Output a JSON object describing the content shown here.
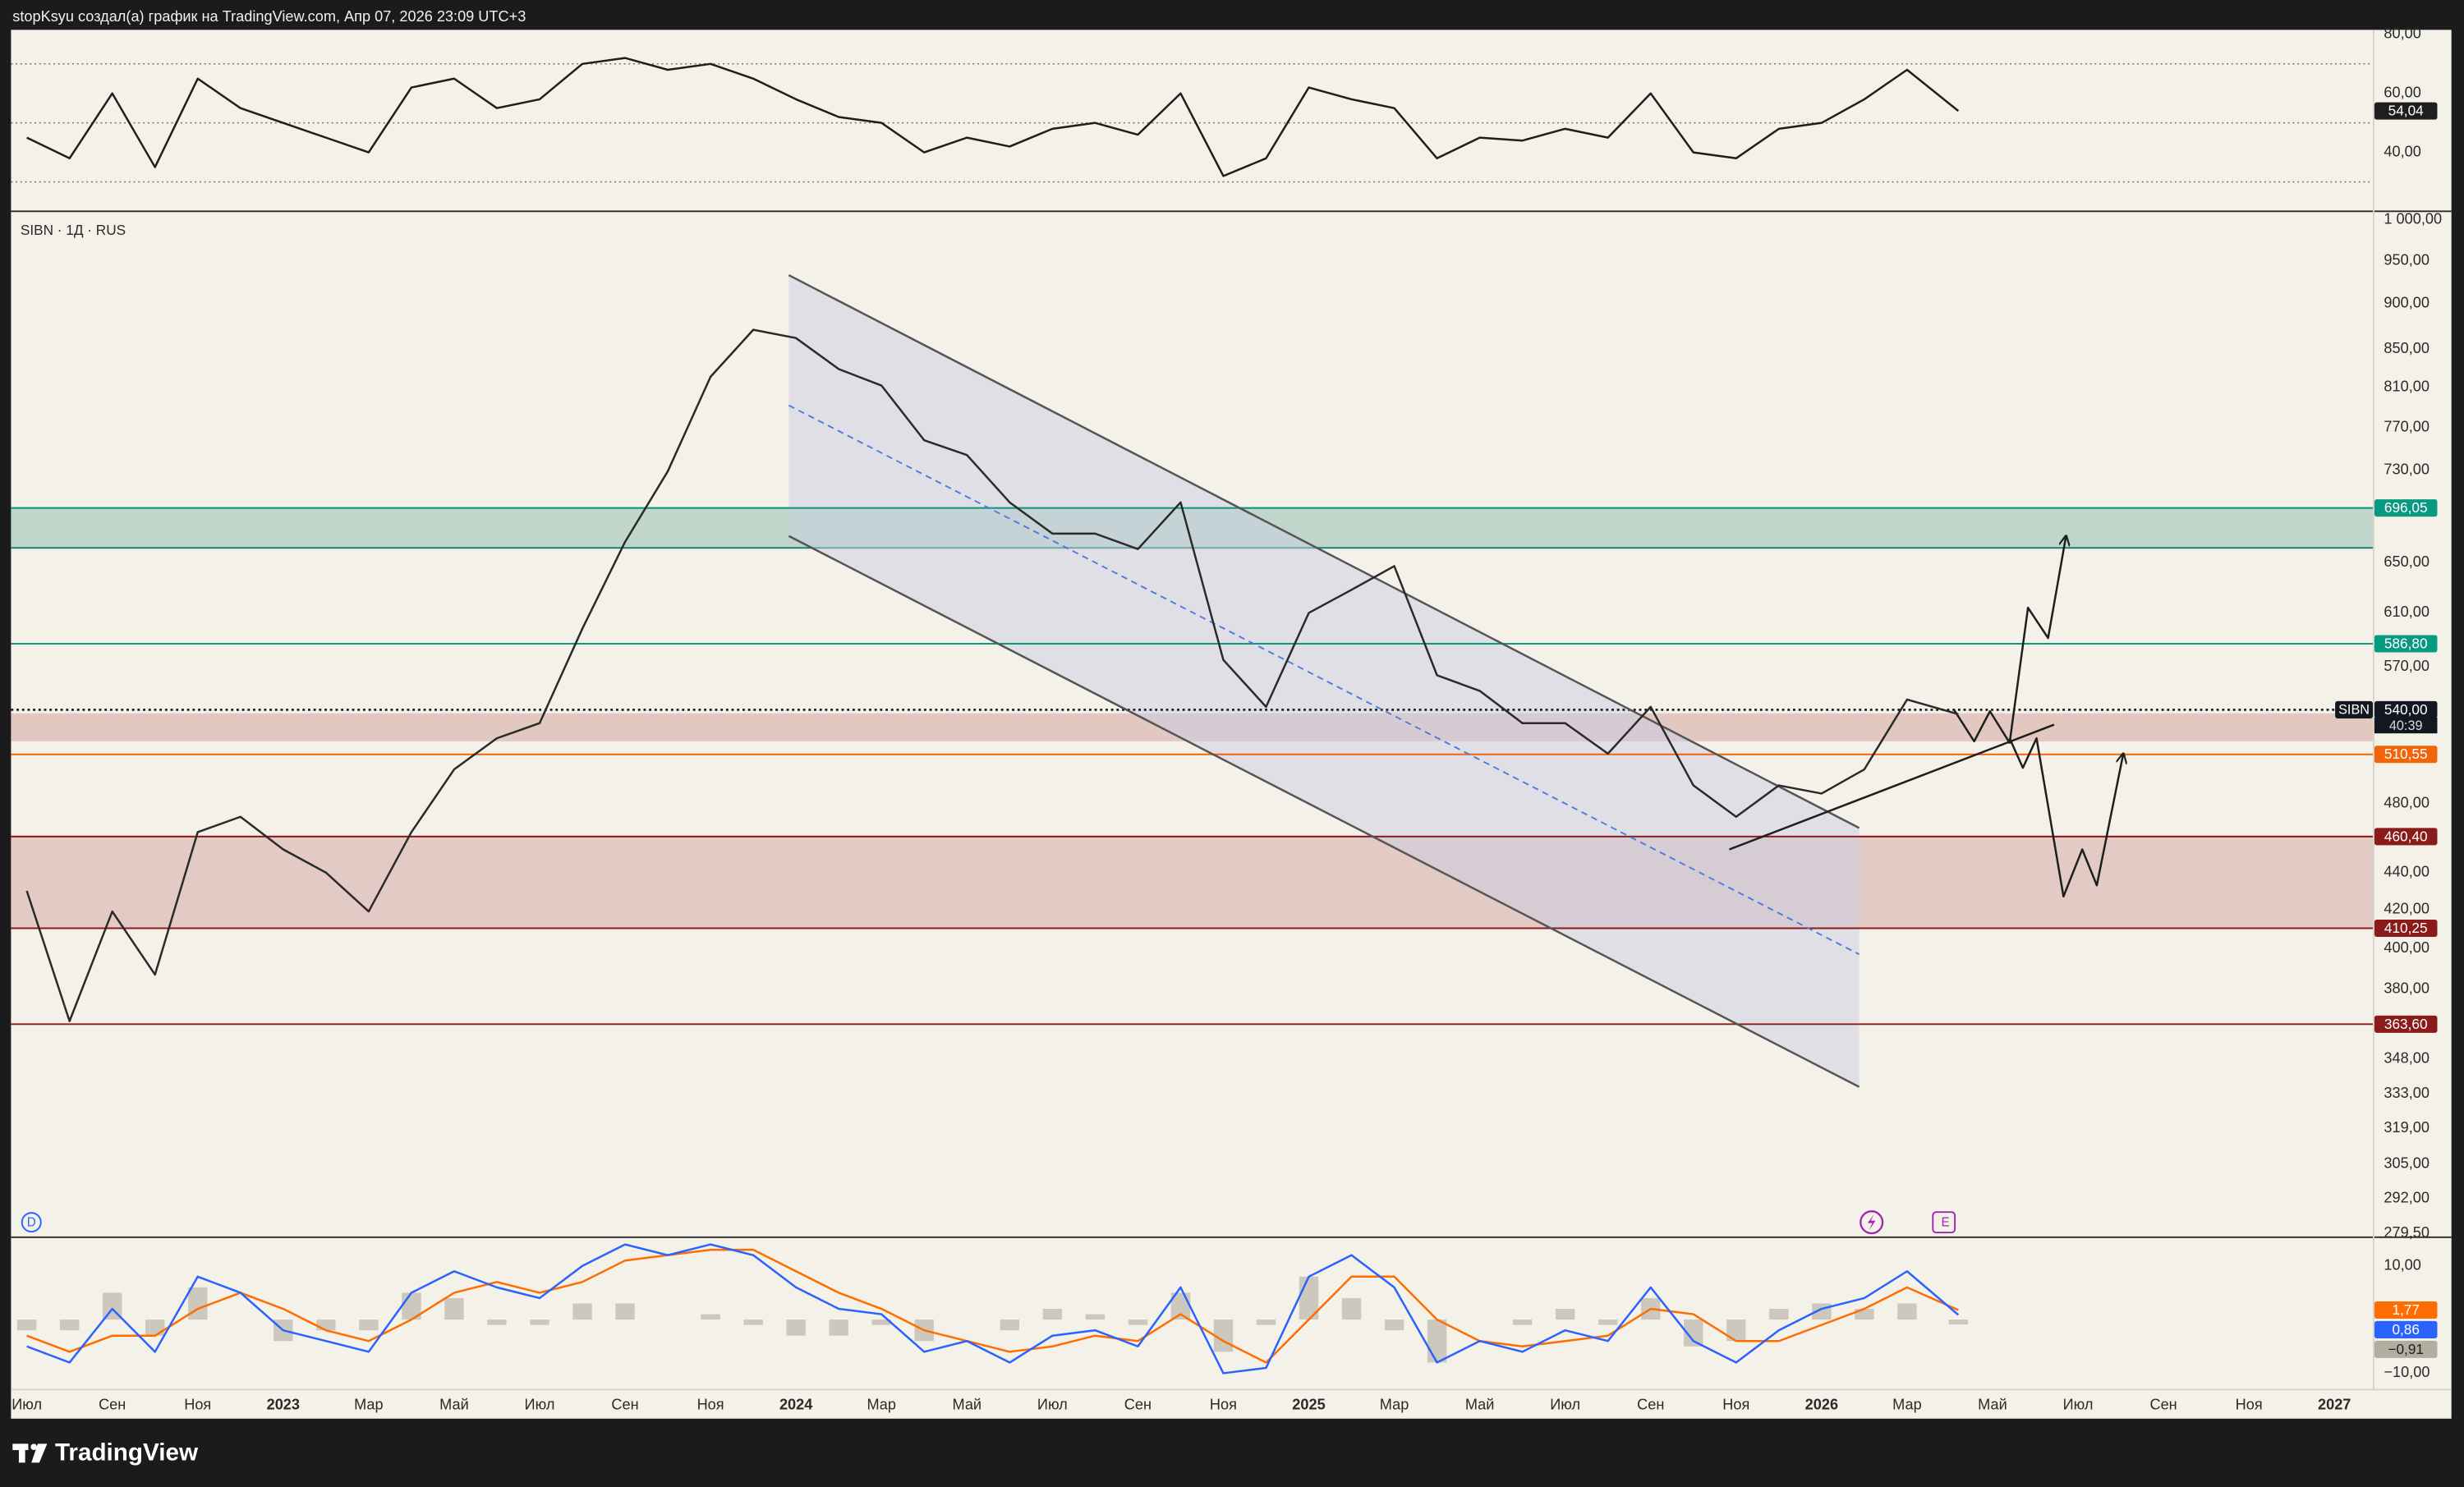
{
  "header": {
    "text": "stopKsyu создал(а) график на TradingView.com, Апр 07, 2026 23:09 UTC+3"
  },
  "footer": {
    "brand": "TradingView"
  },
  "markers": {
    "dividend": "D",
    "earnings": "E"
  },
  "chart_data": [
    {
      "type": "line",
      "xlim": [
        -0.37,
        54.9
      ],
      "ylim": [
        20.3,
        81
      ],
      "yticks": [
        {
          "value": 80,
          "label": "80,00"
        },
        {
          "value": 60,
          "label": "60,00"
        },
        {
          "value": 40,
          "label": "40,00"
        }
      ],
      "bands": [
        70,
        50,
        30
      ],
      "x": [
        0,
        1,
        2,
        3,
        4,
        5,
        6,
        7,
        8,
        9,
        10,
        11,
        12,
        13,
        14,
        15,
        16,
        17,
        18,
        19,
        20,
        21,
        22,
        23,
        24,
        25,
        26,
        27,
        28,
        29,
        30,
        31,
        32,
        33,
        34,
        35,
        36,
        37,
        38,
        39,
        40,
        41,
        42,
        43,
        44,
        45.2
      ],
      "series": [
        {
          "color": "#1e1e1e",
          "values": [
            45,
            38,
            60,
            35,
            65,
            55,
            50,
            45,
            40,
            62,
            65,
            55,
            58,
            70,
            72,
            68,
            70,
            65,
            58,
            52,
            50,
            40,
            45,
            42,
            48,
            50,
            46,
            60,
            32,
            38,
            62,
            58,
            55,
            38,
            45,
            44,
            48,
            45,
            60,
            40,
            38,
            48,
            50,
            58,
            68,
            54.04
          ],
          "value_labels": [
            null,
            null,
            null,
            null,
            null,
            null,
            null,
            null,
            null,
            null,
            null,
            null,
            null,
            null,
            null,
            null,
            null,
            null,
            null,
            null,
            null,
            null,
            null,
            null,
            null,
            null,
            null,
            null,
            null,
            null,
            null,
            null,
            null,
            null,
            null,
            null,
            null,
            null,
            null,
            null,
            null,
            null,
            null,
            null,
            null,
            "54,04"
          ]
        }
      ]
    },
    {
      "type": "line",
      "title": "SIBN · 1Д · RUS",
      "log_scale": true,
      "xlim": [
        -0.37,
        54.9
      ],
      "ylim": [
        278.4,
        1010
      ],
      "xticks": [
        {
          "value": 0,
          "label": "Июл"
        },
        {
          "value": 2,
          "label": "Сен"
        },
        {
          "value": 4,
          "label": "Ноя"
        },
        {
          "value": 6,
          "label": "2023"
        },
        {
          "value": 8,
          "label": "Мар"
        },
        {
          "value": 10,
          "label": "Май"
        },
        {
          "value": 12,
          "label": "Июл"
        },
        {
          "value": 14,
          "label": "Сен"
        },
        {
          "value": 16,
          "label": "Ноя"
        },
        {
          "value": 18,
          "label": "2024"
        },
        {
          "value": 20,
          "label": "Мар"
        },
        {
          "value": 22,
          "label": "Май"
        },
        {
          "value": 24,
          "label": "Июл"
        },
        {
          "value": 26,
          "label": "Сен"
        },
        {
          "value": 28,
          "label": "Ноя"
        },
        {
          "value": 30,
          "label": "2025"
        },
        {
          "value": 32,
          "label": "Мар"
        },
        {
          "value": 34,
          "label": "Май"
        },
        {
          "value": 36,
          "label": "Июл"
        },
        {
          "value": 38,
          "label": "Сен"
        },
        {
          "value": 40,
          "label": "Ноя"
        },
        {
          "value": 42,
          "label": "2026"
        },
        {
          "value": 44,
          "label": "Мар"
        },
        {
          "value": 46,
          "label": "Май"
        },
        {
          "value": 48,
          "label": "Июл"
        },
        {
          "value": 50,
          "label": "Сен"
        },
        {
          "value": 52,
          "label": "Ноя"
        },
        {
          "value": 54,
          "label": "2027"
        }
      ],
      "yticks": [
        {
          "value": 1000,
          "label": "1 000,00"
        },
        {
          "value": 950,
          "label": "950,00"
        },
        {
          "value": 900,
          "label": "900,00"
        },
        {
          "value": 850,
          "label": "850,00"
        },
        {
          "value": 810,
          "label": "810,00"
        },
        {
          "value": 770,
          "label": "770,00"
        },
        {
          "value": 730,
          "label": "730,00"
        },
        {
          "value": 650,
          "label": "650,00"
        },
        {
          "value": 610,
          "label": "610,00"
        },
        {
          "value": 570,
          "label": "570,00"
        },
        {
          "value": 480,
          "label": "480,00"
        },
        {
          "value": 440,
          "label": "440,00"
        },
        {
          "value": 420,
          "label": "420,00"
        },
        {
          "value": 400,
          "label": "400,00"
        },
        {
          "value": 380,
          "label": "380,00"
        },
        {
          "value": 348,
          "label": "348,00"
        },
        {
          "value": 333,
          "label": "333,00"
        },
        {
          "value": 319,
          "label": "319,00"
        },
        {
          "value": 305,
          "label": "305,00"
        },
        {
          "value": 292,
          "label": "292,00"
        },
        {
          "value": 279.5,
          "label": "279,50"
        }
      ],
      "x": [
        0,
        1,
        2,
        3,
        4,
        5,
        6,
        7,
        8,
        9,
        10,
        11,
        12,
        13,
        14,
        15,
        16,
        17,
        18,
        19,
        20,
        21,
        22,
        23,
        24,
        25,
        26,
        27,
        28,
        29,
        30,
        31,
        32,
        33,
        34,
        35,
        36,
        37,
        38,
        39,
        40,
        41,
        42,
        43,
        44,
        45.2
      ],
      "series": [
        {
          "color": "#2a2a2a",
          "values": [
            430,
            365,
            419,
            387,
            463,
            472,
            453,
            440,
            419,
            463,
            501,
            521,
            531,
            598,
            667,
            729,
            821,
            871,
            862,
            829,
            812,
            758,
            744,
            701,
            674,
            674,
            661,
            701,
            575,
            542,
            610,
            628,
            647,
            564,
            553,
            531,
            531,
            511,
            542,
            491,
            472,
            491,
            486,
            501,
            547,
            537
          ]
        }
      ],
      "zones": [
        {
          "from": 662,
          "to": 696.05,
          "color": "#a9cbbf",
          "border": "#1f7f73"
        },
        {
          "from": 519,
          "to": 537.6,
          "color": "#dcb6b2"
        },
        {
          "from": 410.25,
          "to": 460.4,
          "color": "#dcb9b5",
          "border": "#8b1a1a"
        }
      ],
      "levels": [
        {
          "value": 696.05,
          "label": "696,05",
          "color": "#089981",
          "style": "solid"
        },
        {
          "value": 586.8,
          "label": "586,80",
          "color": "#089981",
          "style": "solid"
        },
        {
          "value": 540,
          "label": "540,00",
          "color": "#131722",
          "style": "dotted",
          "tag": "SIBN",
          "countdown": "40:39"
        },
        {
          "value": 510.55,
          "label": "510,55",
          "color": "#f0640a",
          "style": "solid"
        },
        {
          "value": 460.4,
          "label": "460,40",
          "color": "#8b1a1a",
          "style": "solid"
        },
        {
          "value": 410.25,
          "label": "410,25",
          "color": "#8b1a1a",
          "style": "solid"
        },
        {
          "value": 363.6,
          "label": "363,60",
          "color": "#8b1a1a",
          "style": "solid"
        }
      ],
      "drawings": [
        {
          "kind": "polygon",
          "color": "#c9cee2",
          "points": [
            [
              17.83,
              933
            ],
            [
              42.88,
              465.4
            ],
            [
              42.88,
              336
            ],
            [
              17.83,
              672
            ]
          ]
        },
        {
          "kind": "line",
          "color": "#555555",
          "points": [
            [
              17.83,
              933
            ],
            [
              42.88,
              465.4
            ]
          ]
        },
        {
          "kind": "line",
          "color": "#555555",
          "points": [
            [
              17.83,
              672
            ],
            [
              42.88,
              336
            ]
          ]
        },
        {
          "kind": "dashed",
          "color": "#4f7ae0",
          "points": [
            [
              17.83,
              792
            ],
            [
              42.88,
              397
            ]
          ]
        },
        {
          "kind": "line",
          "color": "#1e1e1e",
          "points": [
            [
              39.84,
              453
            ],
            [
              47.44,
              530
            ]
          ]
        },
        {
          "kind": "arrow",
          "color": "#1e1e1e",
          "points": [
            [
              45.1,
              540
            ],
            [
              45.57,
              519
            ],
            [
              45.94,
              539
            ],
            [
              46.4,
              518
            ],
            [
              46.83,
              614
            ],
            [
              47.3,
              591
            ],
            [
              47.72,
              672
            ]
          ]
        },
        {
          "kind": "arrow",
          "color": "#1e1e1e",
          "points": [
            [
              46.4,
              521
            ],
            [
              46.71,
              502
            ],
            [
              47.03,
              521
            ],
            [
              47.66,
              427
            ],
            [
              48.1,
              453
            ],
            [
              48.44,
              433
            ],
            [
              49.06,
              511
            ]
          ]
        }
      ]
    },
    {
      "type": "line",
      "xlim": [
        -0.37,
        54.9
      ],
      "ylim": [
        -12.9,
        15.2
      ],
      "yticks": [
        {
          "value": 10,
          "label": "10,00"
        },
        {
          "value": -10,
          "label": "−10,00"
        }
      ],
      "x": [
        0,
        1,
        2,
        3,
        4,
        5,
        6,
        7,
        8,
        9,
        10,
        11,
        12,
        13,
        14,
        15,
        16,
        17,
        18,
        19,
        20,
        21,
        22,
        23,
        24,
        25,
        26,
        27,
        28,
        29,
        30,
        31,
        32,
        33,
        34,
        35,
        36,
        37,
        38,
        39,
        40,
        41,
        42,
        43,
        44,
        45.2
      ],
      "series": [
        {
          "type": "bar",
          "color": "#b3ada0",
          "values": [
            -2,
            -2,
            5,
            -3,
            6,
            0,
            -4,
            -2,
            -2,
            5,
            4,
            -1,
            -1,
            3,
            3,
            0,
            1,
            -1,
            -3,
            -3,
            -1,
            -4,
            0,
            -2,
            2,
            1,
            -1,
            5,
            -6,
            -1,
            8,
            4,
            -2,
            -8,
            0,
            -1,
            2,
            -1,
            4,
            -5,
            -4,
            2,
            3,
            2,
            3,
            -0.91
          ],
          "value_labels": [
            null,
            null,
            null,
            null,
            null,
            null,
            null,
            null,
            null,
            null,
            null,
            null,
            null,
            null,
            null,
            null,
            null,
            null,
            null,
            null,
            null,
            null,
            null,
            null,
            null,
            null,
            null,
            null,
            null,
            null,
            null,
            null,
            null,
            null,
            null,
            null,
            null,
            null,
            null,
            null,
            null,
            null,
            null,
            null,
            null,
            "−0,91"
          ]
        },
        {
          "color": "#ff6d00",
          "values": [
            -3,
            -6,
            -3,
            -3,
            2,
            5,
            2,
            -2,
            -4,
            0,
            5,
            7,
            5,
            7,
            11,
            12,
            13,
            13,
            9,
            5,
            2,
            -2,
            -4,
            -6,
            -5,
            -3,
            -4,
            1,
            -4,
            -8,
            0,
            8,
            8,
            0,
            -4,
            -5,
            -4,
            -3,
            2,
            1,
            -4,
            -4,
            -1,
            2,
            6,
            1.77
          ],
          "value_labels": [
            null,
            null,
            null,
            null,
            null,
            null,
            null,
            null,
            null,
            null,
            null,
            null,
            null,
            null,
            null,
            null,
            null,
            null,
            null,
            null,
            null,
            null,
            null,
            null,
            null,
            null,
            null,
            null,
            null,
            null,
            null,
            null,
            null,
            null,
            null,
            null,
            null,
            null,
            null,
            null,
            null,
            null,
            null,
            null,
            null,
            "1,77"
          ]
        },
        {
          "color": "#2962ff",
          "values": [
            -5,
            -8,
            2,
            -6,
            8,
            5,
            -2,
            -4,
            -6,
            5,
            9,
            6,
            4,
            10,
            14,
            12,
            14,
            12,
            6,
            2,
            1,
            -6,
            -4,
            -8,
            -3,
            -2,
            -5,
            6,
            -10,
            -9,
            8,
            12,
            6,
            -8,
            -4,
            -6,
            -2,
            -4,
            6,
            -4,
            -8,
            -2,
            2,
            4,
            9,
            0.86
          ],
          "value_labels": [
            null,
            null,
            null,
            null,
            null,
            null,
            null,
            null,
            null,
            null,
            null,
            null,
            null,
            null,
            null,
            null,
            null,
            null,
            null,
            null,
            null,
            null,
            null,
            null,
            null,
            null,
            null,
            null,
            null,
            null,
            null,
            null,
            null,
            null,
            null,
            null,
            null,
            null,
            null,
            null,
            null,
            null,
            null,
            null,
            null,
            "0,86"
          ]
        }
      ]
    }
  ]
}
